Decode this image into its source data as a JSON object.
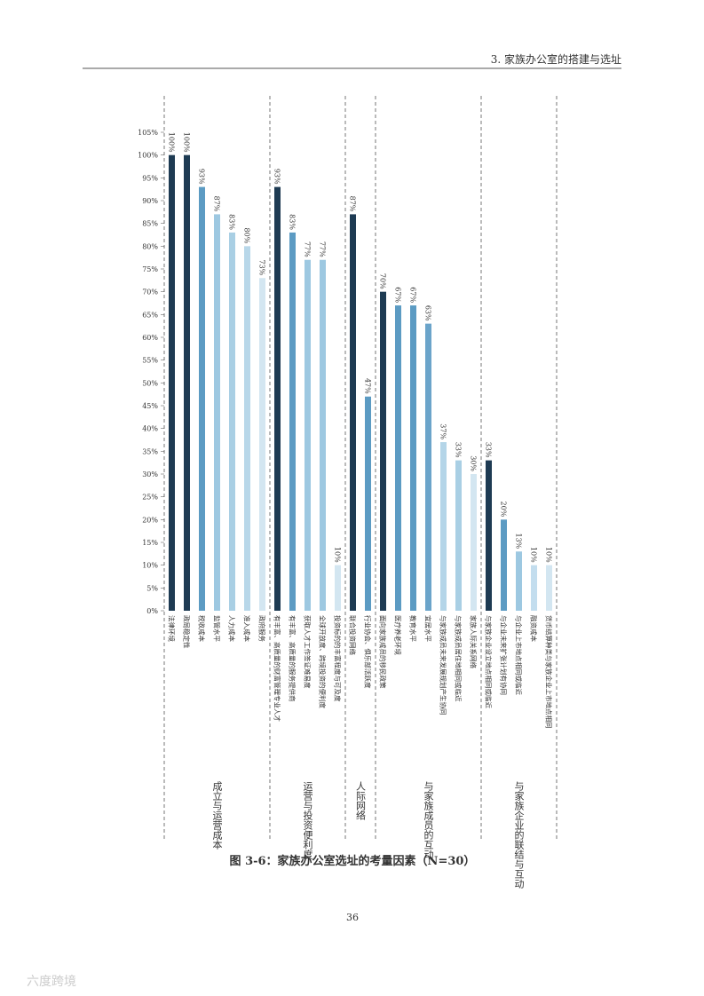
{
  "header": "3. 家族办公室的搭建与选址",
  "chart_data": {
    "type": "bar",
    "ylim": [
      0,
      105
    ],
    "yticks": [
      {
        "value": 0,
        "label": "0%"
      },
      {
        "value": 5,
        "label": "5%"
      },
      {
        "value": 10,
        "label": "10%"
      },
      {
        "value": 15,
        "label": "15%"
      },
      {
        "value": 20,
        "label": "20%"
      },
      {
        "value": 25,
        "label": "25%"
      },
      {
        "value": 30,
        "label": "30%"
      },
      {
        "value": 35,
        "label": "35%"
      },
      {
        "value": 40,
        "label": "40%"
      },
      {
        "value": 45,
        "label": "45%"
      },
      {
        "value": 50,
        "label": "50%"
      },
      {
        "value": 55,
        "label": "55%"
      },
      {
        "value": 60,
        "label": "60%"
      },
      {
        "value": 65,
        "label": "65%"
      },
      {
        "value": 70,
        "label": "70%"
      },
      {
        "value": 75,
        "label": "75%"
      },
      {
        "value": 80,
        "label": "80%"
      },
      {
        "value": 85,
        "label": "85%"
      },
      {
        "value": 90,
        "label": "90%"
      },
      {
        "value": 95,
        "label": "95%"
      },
      {
        "value": 100,
        "label": "100%"
      },
      {
        "value": 105,
        "label": "105%"
      }
    ],
    "groups": [
      {
        "name": "成立与运营成本",
        "categories": [
          "法律环境",
          "政局稳定性",
          "税收成本",
          "监管水平",
          "人力成本",
          "准入成本",
          "政府服务"
        ],
        "values": [
          100,
          100,
          93,
          87,
          83,
          80,
          73
        ],
        "value_labels": [
          "100%",
          "100%",
          "93%",
          "87%",
          "83%",
          "80%",
          "73%"
        ],
        "colors": [
          "#1e3b53",
          "#1e3b53",
          "#5c9bc3",
          "#9dc8e1",
          "#a9cfe4",
          "#b8d7e9",
          "#d3e6f1"
        ]
      },
      {
        "name": "运营与投资便利度",
        "categories": [
          "有丰富、高质量的财富管理专业人才",
          "有丰富、高质量的服务提供商",
          "获取人才工作签证难易度",
          "全球开放度、跨境投资的便利度",
          "投资标的的丰富程度与可及度"
        ],
        "values": [
          93,
          83,
          77,
          77,
          10
        ],
        "value_labels": [
          "93%",
          "83%",
          "77%",
          "77%",
          "10%"
        ],
        "colors": [
          "#1e3b53",
          "#5c9bc3",
          "#9dc8e1",
          "#9dc8e1",
          "#d3e6f1"
        ]
      },
      {
        "name": "人际网络",
        "categories": [
          "联合投资网络",
          "行业协会、俱乐部活跃度"
        ],
        "values": [
          87,
          47
        ],
        "value_labels": [
          "87%",
          "47%"
        ],
        "colors": [
          "#1e3b53",
          "#5c9bc3"
        ]
      },
      {
        "name": "与家族成员的互动",
        "categories": [
          "面向家族成员的移民政策",
          "医疗养老环境",
          "教育水平",
          "宜居水平",
          "与家族成员未来发展规划产生协同",
          "与家族成员居住地相同或临近",
          "家族人际关系网络"
        ],
        "values": [
          70,
          67,
          67,
          63,
          37,
          33,
          30
        ],
        "value_labels": [
          "70%",
          "67%",
          "67%",
          "63%",
          "37%",
          "33%",
          "30%"
        ],
        "colors": [
          "#1e3b53",
          "#5c9bc3",
          "#5c9bc3",
          "#6ba4ca",
          "#b4d5e8",
          "#a9cfe4",
          "#d3e6f1"
        ]
      },
      {
        "name": "与家族企业的联结与互动",
        "categories": [
          "与家族企业设立地点相同或临近",
          "与企业未来扩张计划有协同",
          "与企业上市地点相同或临近",
          "融资成本",
          "货币结算种类与家族企业上市地点相同"
        ],
        "values": [
          33,
          20,
          13,
          10,
          10
        ],
        "value_labels": [
          "33%",
          "20%",
          "13%",
          "10%",
          "10%"
        ],
        "colors": [
          "#1e3b53",
          "#5c9bc3",
          "#9dc8e1",
          "#c3ddee",
          "#d3e6f1"
        ]
      }
    ]
  },
  "caption": "图 3-6：家族办公室选址的考量因素（N=30）",
  "page_number": "36",
  "watermark": "六度跨境"
}
